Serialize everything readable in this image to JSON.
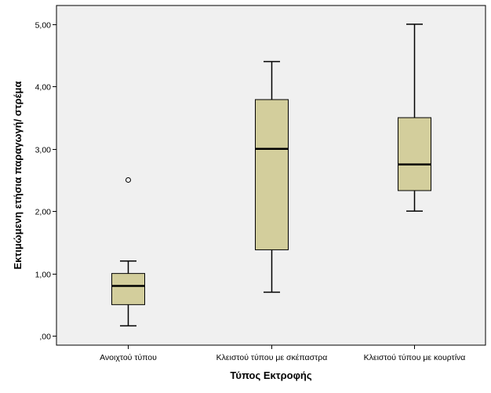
{
  "chart_data": {
    "type": "boxplot",
    "title": "",
    "xlabel": "Τύπος Εκτροφής",
    "ylabel": "Εκτιμώμενη ετήσια παραγωγή/ στρέμα",
    "ylim": [
      -0.15,
      5.3
    ],
    "y_ticks": [
      0,
      1,
      2,
      3,
      4,
      5
    ],
    "y_tick_labels": [
      ",00",
      "1,00",
      "2,00",
      "3,00",
      "4,00",
      "5,00"
    ],
    "grid": false,
    "categories": [
      "Ανοιχτού τύπου",
      "Κλειστού τύπου με σκέπαστρα",
      "Κλειστού τύπου με κουρτίνα"
    ],
    "boxes": [
      {
        "category": "Ανοιχτού τύπου",
        "min": 0.16,
        "q1": 0.5,
        "median": 0.8,
        "q3": 1.0,
        "max": 1.2,
        "outliers": [
          2.5
        ]
      },
      {
        "category": "Κλειστού τύπου με σκέπαστρα",
        "min": 0.7,
        "q1": 1.38,
        "median": 3.0,
        "q3": 3.79,
        "max": 4.4,
        "outliers": []
      },
      {
        "category": "Κλειστού τύπου με κουρτίνα",
        "min": 2.0,
        "q1": 2.33,
        "median": 2.75,
        "q3": 3.5,
        "max": 5.0,
        "outliers": []
      }
    ],
    "colors": {
      "plot_background": "#f0f0f0",
      "box_fill": "#d3ce9c",
      "box_stroke": "#000000",
      "frame": "#000000"
    }
  }
}
